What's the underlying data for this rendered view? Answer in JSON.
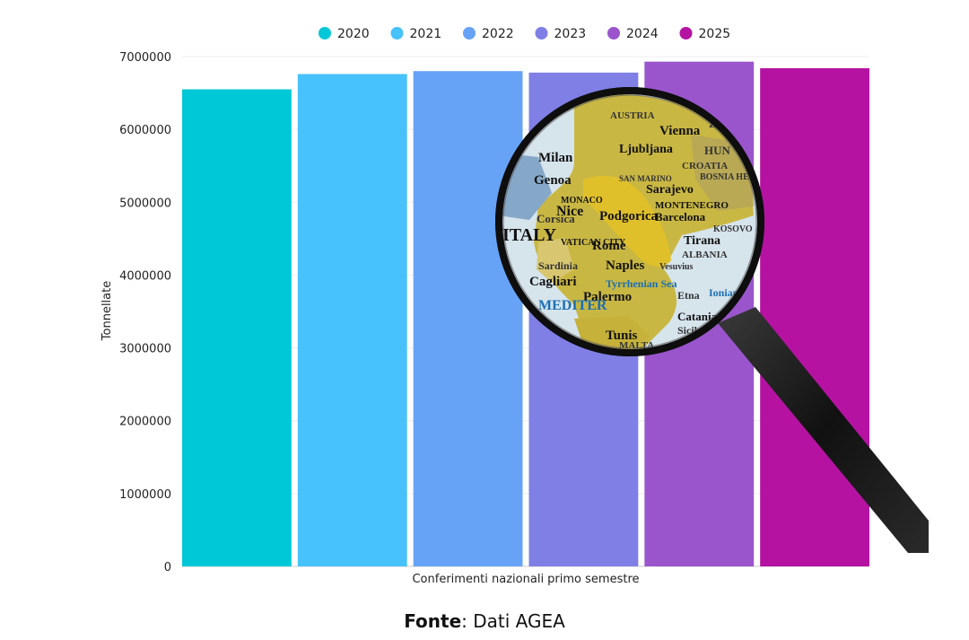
{
  "chart_data": {
    "type": "bar",
    "categories": [
      "Conferimenti nazionali primo semestre"
    ],
    "series": [
      {
        "name": "2020",
        "values": [
          6550000
        ],
        "color": "#00c8d7"
      },
      {
        "name": "2021",
        "values": [
          6760000
        ],
        "color": "#47c2fc"
      },
      {
        "name": "2022",
        "values": [
          6800000
        ],
        "color": "#66a3f7"
      },
      {
        "name": "2023",
        "values": [
          6780000
        ],
        "color": "#7f7fe6"
      },
      {
        "name": "2024",
        "values": [
          6930000
        ],
        "color": "#9a55cd"
      },
      {
        "name": "2025",
        "values": [
          6840000
        ],
        "color": "#b512a2"
      }
    ],
    "xlabel": "Conferimenti nazionali primo semestre",
    "ylabel": "Tonnellate",
    "ylim": [
      0,
      7000000
    ],
    "yticks": [
      "0",
      "1000000",
      "2000000",
      "3000000",
      "4000000",
      "5000000",
      "6000000",
      "7000000"
    ],
    "legend_position": "top-center",
    "grid": true
  },
  "source": {
    "label": "Fonte",
    "text": ": Dati AGEA"
  },
  "overlay": {
    "image": "magnifying-glass-over-map-of-italy",
    "map_labels": [
      "AUSTRIA",
      "Vienna",
      "Ljubljana",
      "Zagreb",
      "HUN",
      "Milan",
      "Genoa",
      "SAN MARINO",
      "CROATIA",
      "BOSNIA HER",
      "Sarajevo",
      "MONACO",
      "Nice",
      "Corsica",
      "MONTENEGRO",
      "Podgorica",
      "ITALY",
      "Barcelona",
      "VATICAN CITY",
      "Rome",
      "Tirana",
      "KOSOVO",
      "ALBANIA",
      "Sardinia",
      "Naples",
      "Vesuvius",
      "Cagliari",
      "Tyrrhenian Sea",
      "Etna",
      "Ionian",
      "Palermo",
      "Catania",
      "Sicily",
      "Tunis",
      "MALTA",
      "MEDITER"
    ]
  }
}
